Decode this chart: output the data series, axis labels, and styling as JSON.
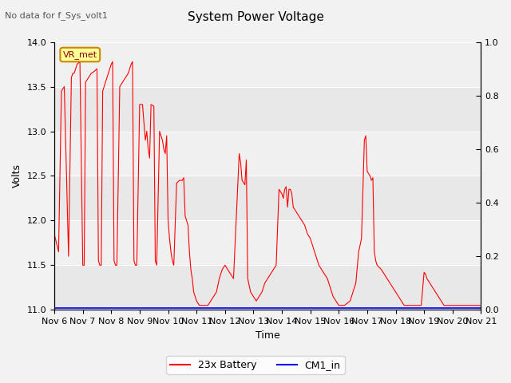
{
  "title": "System Power Voltage",
  "subtitle": "No data for f_Sys_volt1",
  "xlabel": "Time",
  "ylabel": "Volts",
  "ylim_left": [
    11.0,
    14.0
  ],
  "ylim_right": [
    0.0,
    1.0
  ],
  "yticks_left": [
    11.0,
    11.5,
    12.0,
    12.5,
    13.0,
    13.5,
    14.0
  ],
  "yticks_right": [
    0.0,
    0.2,
    0.4,
    0.6,
    0.8,
    1.0
  ],
  "xtick_labels": [
    "Nov 6",
    "Nov 7",
    "Nov 8",
    "Nov 9",
    "Nov 10",
    "Nov 11",
    "Nov 12",
    "Nov 13",
    "Nov 14",
    "Nov 15",
    "Nov 16",
    "Nov 17",
    "Nov 18",
    "Nov 19",
    "Nov 20",
    "Nov 21"
  ],
  "legend_entries": [
    "23x Battery",
    "CM1_in"
  ],
  "vr_met_label": "VR_met",
  "background_color": "#f2f2f2",
  "plot_bg_color": "#ffffff",
  "stripe_colors": [
    "#e8e8e8",
    "#f5f5f5"
  ],
  "battery_data": [
    [
      0.0,
      11.85
    ],
    [
      0.15,
      11.65
    ],
    [
      0.25,
      13.45
    ],
    [
      0.35,
      13.5
    ],
    [
      0.5,
      11.6
    ],
    [
      0.6,
      13.6
    ],
    [
      0.65,
      13.65
    ],
    [
      0.7,
      13.65
    ],
    [
      0.8,
      13.75
    ],
    [
      0.9,
      13.78
    ],
    [
      1.0,
      11.5
    ],
    [
      1.05,
      11.5
    ],
    [
      1.1,
      13.55
    ],
    [
      1.2,
      13.6
    ],
    [
      1.3,
      13.65
    ],
    [
      1.4,
      13.67
    ],
    [
      1.5,
      13.7
    ],
    [
      1.55,
      11.55
    ],
    [
      1.6,
      11.5
    ],
    [
      1.65,
      11.5
    ],
    [
      1.7,
      13.45
    ],
    [
      1.8,
      13.55
    ],
    [
      1.9,
      13.65
    ],
    [
      2.0,
      13.75
    ],
    [
      2.05,
      13.78
    ],
    [
      2.1,
      11.55
    ],
    [
      2.15,
      11.5
    ],
    [
      2.2,
      11.5
    ],
    [
      2.3,
      13.5
    ],
    [
      2.4,
      13.55
    ],
    [
      2.5,
      13.6
    ],
    [
      2.6,
      13.65
    ],
    [
      2.7,
      13.75
    ],
    [
      2.75,
      13.78
    ],
    [
      2.8,
      11.55
    ],
    [
      2.85,
      11.5
    ],
    [
      2.9,
      11.5
    ],
    [
      3.0,
      13.3
    ],
    [
      3.1,
      13.3
    ],
    [
      3.15,
      13.1
    ],
    [
      3.2,
      12.9
    ],
    [
      3.25,
      13.0
    ],
    [
      3.3,
      12.8
    ],
    [
      3.35,
      12.7
    ],
    [
      3.4,
      13.3
    ],
    [
      3.5,
      13.28
    ],
    [
      3.55,
      11.55
    ],
    [
      3.6,
      11.5
    ],
    [
      3.7,
      13.0
    ],
    [
      3.75,
      12.95
    ],
    [
      3.8,
      12.9
    ],
    [
      3.85,
      12.8
    ],
    [
      3.9,
      12.75
    ],
    [
      3.95,
      12.95
    ],
    [
      4.0,
      12.0
    ],
    [
      4.05,
      11.8
    ],
    [
      4.1,
      11.65
    ],
    [
      4.15,
      11.55
    ],
    [
      4.2,
      11.5
    ],
    [
      4.3,
      12.42
    ],
    [
      4.4,
      12.45
    ],
    [
      4.5,
      12.45
    ],
    [
      4.55,
      12.48
    ],
    [
      4.6,
      12.05
    ],
    [
      4.65,
      12.0
    ],
    [
      4.7,
      11.95
    ],
    [
      4.75,
      11.65
    ],
    [
      4.8,
      11.45
    ],
    [
      4.85,
      11.35
    ],
    [
      4.9,
      11.2
    ],
    [
      4.95,
      11.15
    ],
    [
      5.0,
      11.1
    ],
    [
      5.1,
      11.05
    ],
    [
      5.2,
      11.05
    ],
    [
      5.3,
      11.05
    ],
    [
      5.4,
      11.05
    ],
    [
      5.5,
      11.1
    ],
    [
      5.6,
      11.15
    ],
    [
      5.7,
      11.2
    ],
    [
      5.8,
      11.35
    ],
    [
      5.9,
      11.45
    ],
    [
      6.0,
      11.5
    ],
    [
      6.1,
      11.45
    ],
    [
      6.2,
      11.4
    ],
    [
      6.3,
      11.35
    ],
    [
      6.5,
      12.75
    ],
    [
      6.55,
      12.65
    ],
    [
      6.6,
      12.45
    ],
    [
      6.7,
      12.4
    ],
    [
      6.75,
      12.68
    ],
    [
      6.8,
      11.35
    ],
    [
      6.9,
      11.2
    ],
    [
      7.0,
      11.15
    ],
    [
      7.1,
      11.1
    ],
    [
      7.2,
      11.15
    ],
    [
      7.3,
      11.2
    ],
    [
      7.4,
      11.3
    ],
    [
      7.5,
      11.35
    ],
    [
      7.6,
      11.4
    ],
    [
      7.7,
      11.45
    ],
    [
      7.8,
      11.5
    ],
    [
      7.9,
      12.35
    ],
    [
      8.0,
      12.3
    ],
    [
      8.05,
      12.25
    ],
    [
      8.1,
      12.35
    ],
    [
      8.15,
      12.38
    ],
    [
      8.2,
      12.15
    ],
    [
      8.25,
      12.35
    ],
    [
      8.3,
      12.35
    ],
    [
      8.35,
      12.3
    ],
    [
      8.4,
      12.15
    ],
    [
      8.5,
      12.1
    ],
    [
      8.6,
      12.05
    ],
    [
      8.7,
      12.0
    ],
    [
      8.8,
      11.95
    ],
    [
      8.9,
      11.85
    ],
    [
      9.0,
      11.8
    ],
    [
      9.1,
      11.7
    ],
    [
      9.2,
      11.6
    ],
    [
      9.3,
      11.5
    ],
    [
      9.4,
      11.45
    ],
    [
      9.5,
      11.4
    ],
    [
      9.6,
      11.35
    ],
    [
      9.7,
      11.25
    ],
    [
      9.8,
      11.15
    ],
    [
      9.9,
      11.1
    ],
    [
      10.0,
      11.05
    ],
    [
      10.1,
      11.05
    ],
    [
      10.2,
      11.05
    ],
    [
      10.4,
      11.1
    ],
    [
      10.5,
      11.2
    ],
    [
      10.6,
      11.3
    ],
    [
      10.7,
      11.65
    ],
    [
      10.8,
      11.8
    ],
    [
      10.9,
      12.9
    ],
    [
      10.95,
      12.95
    ],
    [
      11.0,
      12.55
    ],
    [
      11.1,
      12.5
    ],
    [
      11.15,
      12.45
    ],
    [
      11.2,
      12.48
    ],
    [
      11.25,
      11.65
    ],
    [
      11.3,
      11.55
    ],
    [
      11.35,
      11.5
    ],
    [
      11.5,
      11.45
    ],
    [
      11.6,
      11.4
    ],
    [
      11.7,
      11.35
    ],
    [
      11.8,
      11.3
    ],
    [
      11.9,
      11.25
    ],
    [
      12.0,
      11.2
    ],
    [
      12.1,
      11.15
    ],
    [
      12.2,
      11.1
    ],
    [
      12.3,
      11.05
    ],
    [
      12.5,
      11.05
    ],
    [
      12.7,
      11.05
    ],
    [
      12.9,
      11.05
    ],
    [
      13.0,
      11.42
    ],
    [
      13.05,
      11.4
    ],
    [
      13.1,
      11.35
    ],
    [
      13.2,
      11.3
    ],
    [
      13.3,
      11.25
    ],
    [
      13.4,
      11.2
    ],
    [
      13.5,
      11.15
    ],
    [
      13.6,
      11.1
    ],
    [
      13.7,
      11.05
    ],
    [
      13.8,
      11.05
    ],
    [
      13.9,
      11.05
    ],
    [
      14.0,
      11.05
    ],
    [
      14.1,
      11.05
    ],
    [
      14.2,
      11.05
    ],
    [
      14.3,
      11.05
    ],
    [
      14.5,
      11.05
    ],
    [
      14.7,
      11.05
    ],
    [
      15.0,
      11.05
    ]
  ],
  "cm1_data": [
    [
      0.0,
      11.02
    ],
    [
      15.0,
      11.02
    ]
  ]
}
